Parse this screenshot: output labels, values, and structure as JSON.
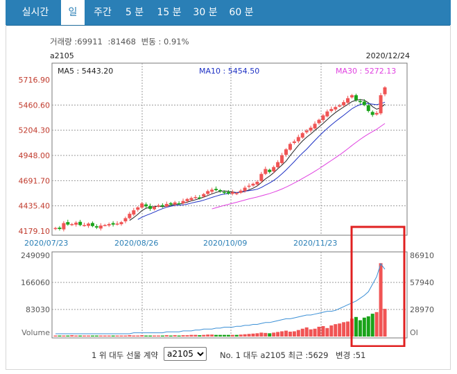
{
  "tabs": [
    {
      "label": "실시간",
      "active": false
    },
    {
      "label": "일",
      "active": true
    },
    {
      "label": "주간",
      "active": false
    },
    {
      "label": "5 분",
      "active": false
    },
    {
      "label": "15 분",
      "active": false
    },
    {
      "label": "30 분",
      "active": false
    },
    {
      "label": "60 분",
      "active": false
    }
  ],
  "info": {
    "volume_label": "거래량 :69911",
    "oi_label": ":81468",
    "change_label": "변동 : 0.91%"
  },
  "contract_code": "a2105",
  "last_date": "2020/12/24",
  "legend": {
    "ma5": "MA5 : 5443.20",
    "ma10": "MA10 : 5454.50",
    "ma30": "MA30 : 5272.13"
  },
  "colors": {
    "up": "#f05454",
    "down": "#1aa31a",
    "ma5": "#222222",
    "ma10": "#1c2fc4",
    "ma30": "#e040e0",
    "tab_bar": "#2a7fb6",
    "highlight": "#e02020"
  },
  "chart_data": {
    "type": "candlestick",
    "price_axis": {
      "ticks": [
        "5716.90",
        "5460.60",
        "5204.30",
        "4948.00",
        "4691.70",
        "4435.40",
        "4179.10"
      ],
      "ylim": [
        4179.1,
        5716.9
      ]
    },
    "x_tick_labels": [
      "2020/07/23",
      "2020/08/26",
      "2020/10/09",
      "2020/11/23"
    ],
    "volume_axis": {
      "ticks": [
        "249090",
        "166060",
        "83030"
      ],
      "label": "Volume",
      "ylim": [
        0,
        249090
      ]
    },
    "oi_axis": {
      "ticks": [
        "86910",
        "57940",
        "28970"
      ],
      "label": "OI"
    },
    "candles_close_approx": [
      4210,
      4200,
      4260,
      4245,
      4250,
      4265,
      4240,
      4240,
      4255,
      4230,
      4215,
      4235,
      4240,
      4250,
      4245,
      4255,
      4270,
      4310,
      4355,
      4390,
      4420,
      4460,
      4430,
      4405,
      4425,
      4440,
      4435,
      4455,
      4450,
      4470,
      4455,
      4485,
      4505,
      4515,
      4525,
      4520,
      4555,
      4585,
      4600,
      4595,
      4585,
      4570,
      4560,
      4575,
      4565,
      4590,
      4620,
      4640,
      4660,
      4680,
      4760,
      4810,
      4780,
      4830,
      4880,
      4950,
      5010,
      5065,
      5090,
      5135,
      5175,
      5200,
      5230,
      5270,
      5310,
      5355,
      5395,
      5420,
      5440,
      5455,
      5490,
      5530,
      5560,
      5510,
      5490,
      5460,
      5400,
      5360,
      5380,
      5560,
      5640
    ],
    "volume_approx": [
      3,
      3,
      3,
      3,
      4,
      3,
      3,
      3,
      3,
      3,
      3,
      3,
      3,
      3,
      3,
      3,
      3,
      3,
      4,
      3,
      3,
      4,
      3,
      3,
      3,
      3,
      3,
      4,
      3,
      4,
      3,
      4,
      4,
      5,
      5,
      4,
      5,
      6,
      6,
      5,
      5,
      5,
      5,
      5,
      5,
      6,
      7,
      8,
      9,
      10,
      12,
      11,
      10,
      12,
      14,
      16,
      18,
      15,
      16,
      20,
      24,
      28,
      22,
      24,
      30,
      32,
      26,
      34,
      38,
      40,
      44,
      46,
      55,
      60,
      50,
      58,
      62,
      70,
      75,
      225,
      85
    ],
    "oi_line_approx": [
      3,
      3,
      3,
      3,
      3,
      3,
      3,
      3,
      3,
      3,
      3,
      3,
      3,
      3,
      3,
      3,
      3,
      3,
      3,
      4,
      4,
      4,
      4,
      4,
      4,
      4,
      4,
      5,
      5,
      5,
      5,
      6,
      6,
      6,
      7,
      7,
      8,
      8,
      8,
      9,
      9,
      10,
      10,
      10,
      11,
      11,
      12,
      12,
      13,
      13,
      14,
      15,
      15,
      16,
      17,
      18,
      19,
      19,
      20,
      21,
      22,
      23,
      23,
      24,
      25,
      26,
      27,
      27,
      28,
      30,
      32,
      34,
      36,
      38,
      41,
      44,
      48,
      56,
      64,
      78,
      72
    ]
  },
  "highlight_box_note": "",
  "bottom": {
    "left_label": "1 위 대두 선물 계약",
    "select_value": "a2105",
    "no_label": "No. 1 대두 a2105 최근 :5629",
    "change_label": "변경 :51"
  }
}
